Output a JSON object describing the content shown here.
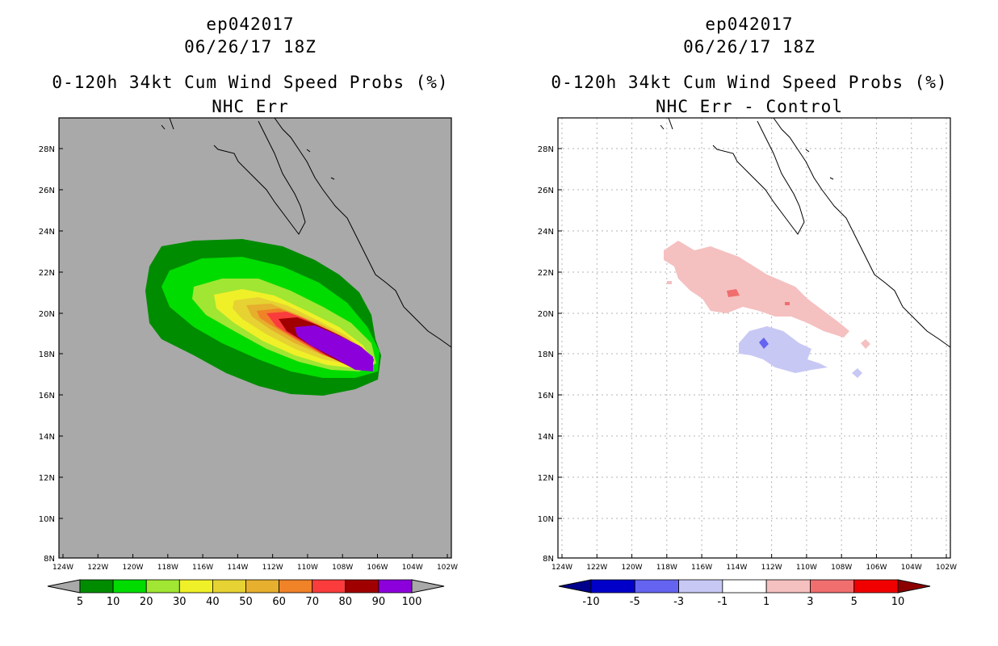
{
  "panels": [
    {
      "id": "left",
      "title_line1": "ep042017",
      "title_line2": "06/26/17 18Z",
      "title_line3": "0-120h 34kt Cum Wind Speed Probs (%)",
      "title_line4": "NHC Err",
      "background": "#a9a9a9",
      "colorbar": {
        "labels": [
          "5",
          "10",
          "20",
          "30",
          "40",
          "50",
          "60",
          "70",
          "80",
          "90",
          "100"
        ],
        "colors": [
          "#008c00",
          "#00dc00",
          "#a0e632",
          "#f0f028",
          "#e6d232",
          "#e6af2d",
          "#f08228",
          "#fa3c3c",
          "#a00000",
          "#8c00dc"
        ],
        "end_left": "#a9a9a9",
        "end_right": "#a9a9a9"
      }
    },
    {
      "id": "right",
      "title_line1": "ep042017",
      "title_line2": "06/26/17 18Z",
      "title_line3": "0-120h 34kt Cum Wind Speed Probs (%)",
      "title_line4": "NHC Err - Control",
      "background": "#ffffff",
      "colorbar": {
        "labels": [
          "-10",
          "-5",
          "-3",
          "-1",
          "1",
          "3",
          "5",
          "10"
        ],
        "colors": [
          "#0000c8",
          "#6464f0",
          "#c8c8f5",
          "#ffffff",
          "#f5c0c0",
          "#f06e6e",
          "#f00000"
        ],
        "end_left": "#00008c",
        "end_right": "#8c0000"
      }
    }
  ],
  "axes": {
    "lat_labels": [
      "28N",
      "26N",
      "24N",
      "22N",
      "20N",
      "18N",
      "16N",
      "14N",
      "12N",
      "10N",
      "8N"
    ],
    "lon_labels": [
      "124W",
      "122W",
      "120W",
      "118W",
      "116W",
      "114W",
      "112W",
      "110W",
      "108W",
      "106W",
      "104W",
      "102W"
    ]
  },
  "colors": {
    "coast": "#000000",
    "grid": "#b4b4b4"
  }
}
